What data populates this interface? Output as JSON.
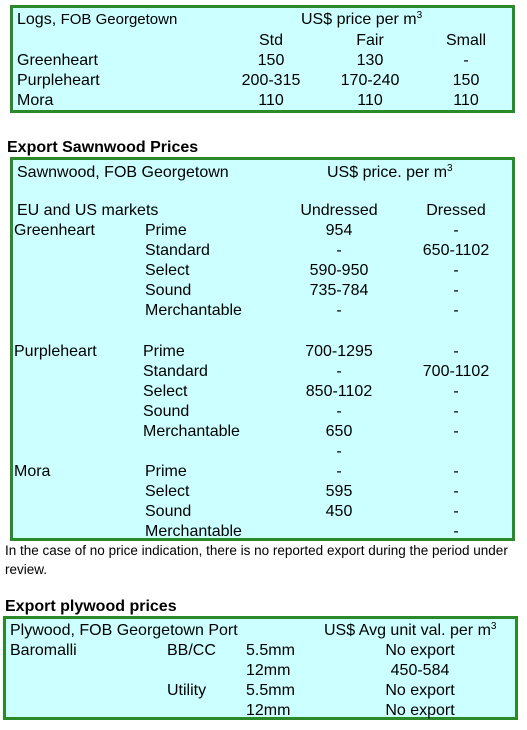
{
  "logs": {
    "title_main": "Logs,",
    "title_rest": "FOB Georgetown",
    "price_header": "US$ price per m",
    "price_sup": "3",
    "columns": [
      "Std",
      "Fair",
      "Small"
    ],
    "rows": [
      {
        "species": "Greenheart",
        "std": "150",
        "fair": "130",
        "small": "-"
      },
      {
        "species": "Purpleheart",
        "std": "200-315",
        "fair": "170-240",
        "small": "150"
      },
      {
        "species": "Mora",
        "std": "110",
        "fair": "110",
        "small": "110"
      }
    ]
  },
  "sawnwood": {
    "heading": "Export Sawnwood Prices",
    "title": "Sawnwood, FOB Georgetown",
    "price_header": "US$ price. per m",
    "price_sup": "3",
    "market_label": "EU and US markets",
    "col_undressed": "Undressed",
    "col_dressed": "Dressed",
    "rows": [
      {
        "species": "Greenheart",
        "grade": "Prime",
        "undressed": "954",
        "dressed": "-"
      },
      {
        "species": "",
        "grade": "Standard",
        "undressed": "-",
        "dressed": "650-1102"
      },
      {
        "species": "",
        "grade": "Select",
        "undressed": "590-950",
        "dressed": "-"
      },
      {
        "species": "",
        "grade": "Sound",
        "undressed": "735-784",
        "dressed": "-"
      },
      {
        "species": "",
        "grade": "Merchantable",
        "undressed": "-",
        "dressed": "-"
      },
      {
        "species": "Purpleheart",
        "grade": "Prime",
        "undressed": "700-1295",
        "dressed": "-"
      },
      {
        "species": "",
        "grade": "Standard",
        "undressed": "-",
        "dressed": "700-1102"
      },
      {
        "species": "",
        "grade": "Select",
        "undressed": "850-1102",
        "dressed": "-"
      },
      {
        "species": "",
        "grade": "Sound",
        "undressed": "-",
        "dressed": "-"
      },
      {
        "species": "",
        "grade": "Merchantable",
        "undressed": "650",
        "dressed": "-"
      },
      {
        "species": "",
        "grade": "",
        "undressed": "-",
        "dressed": ""
      },
      {
        "species": "Mora",
        "grade": "Prime",
        "undressed": "-",
        "dressed": "-"
      },
      {
        "species": "",
        "grade": "Select",
        "undressed": "595",
        "dressed": "-"
      },
      {
        "species": "",
        "grade": "Sound",
        "undressed": "450",
        "dressed": "-"
      },
      {
        "species": "",
        "grade": "Merchantable",
        "undressed": "",
        "dressed": "-"
      }
    ]
  },
  "note": "In the case of no price indication, there is no reported export during the period under review.",
  "plywood": {
    "heading": "Export plywood prices",
    "title": "Plywood, FOB Georgetown Port",
    "price_header": "US$ Avg unit val. per m",
    "price_sup": "3",
    "rows": [
      {
        "species": "Baromalli",
        "grade": "BB/CC",
        "size": "5.5mm",
        "value": "No export"
      },
      {
        "species": "",
        "grade": "",
        "size": "12mm",
        "value": "450-584"
      },
      {
        "species": "",
        "grade": "Utility",
        "size": "5.5mm",
        "value": "No export"
      },
      {
        "species": "",
        "grade": "",
        "size": "12mm",
        "value": "No export"
      }
    ]
  }
}
